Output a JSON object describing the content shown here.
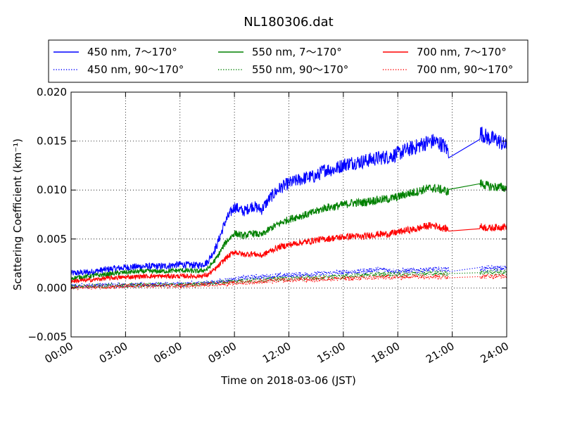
{
  "chart_data": {
    "type": "line",
    "title": "NL180306.dat",
    "xlabel": "Time on 2018-03-06 (JST)",
    "ylabel": "Scattering Coefficient (km⁻¹)",
    "xlim": [
      0,
      24
    ],
    "ylim": [
      -0.005,
      0.02
    ],
    "grid": true,
    "legend_position": "top",
    "xticks": [
      0,
      3,
      6,
      9,
      12,
      15,
      18,
      21,
      24
    ],
    "xtick_labels": [
      "00:00",
      "03:00",
      "06:00",
      "09:00",
      "12:00",
      "15:00",
      "18:00",
      "21:00",
      "24:00"
    ],
    "yticks": [
      -0.005,
      0.0,
      0.005,
      0.01,
      0.015,
      0.02
    ],
    "ytick_labels": [
      "−0.005",
      "0.000",
      "0.005",
      "0.010",
      "0.015",
      "0.020"
    ],
    "gap_hours": [
      20.8,
      22.5
    ],
    "series": [
      {
        "name": "450 nm, 7～170°",
        "color": "#0000ff",
        "style": "solid",
        "x": [
          0,
          1,
          2,
          3,
          4,
          5,
          6,
          7,
          7.5,
          8,
          8.5,
          9,
          9.5,
          10,
          10.5,
          11,
          11.5,
          12,
          12.5,
          13,
          13.5,
          14,
          14.5,
          15,
          15.5,
          16,
          16.5,
          17,
          17.5,
          18,
          18.5,
          19,
          19.5,
          20,
          20.5,
          20.8,
          22.5,
          23,
          23.5,
          24
        ],
        "y": [
          0.0015,
          0.0016,
          0.0019,
          0.0021,
          0.0022,
          0.0022,
          0.0024,
          0.0023,
          0.0026,
          0.0042,
          0.0068,
          0.0083,
          0.0078,
          0.0084,
          0.008,
          0.0093,
          0.0102,
          0.0107,
          0.011,
          0.0113,
          0.0114,
          0.0121,
          0.0121,
          0.0126,
          0.0128,
          0.0129,
          0.0131,
          0.0133,
          0.0134,
          0.0137,
          0.0141,
          0.0144,
          0.0148,
          0.015,
          0.0146,
          0.0139,
          0.0159,
          0.0153,
          0.0151,
          0.0144
        ]
      },
      {
        "name": "450 nm, 90～170°",
        "color": "#0000ff",
        "style": "dotted",
        "x": [
          0,
          2,
          4,
          6,
          8,
          9,
          10,
          12,
          14,
          16,
          17,
          18,
          19,
          20,
          21,
          23,
          24
        ],
        "y": [
          0.0002,
          0.0003,
          0.0003,
          0.0004,
          0.0006,
          0.0009,
          0.0011,
          0.0013,
          0.0015,
          0.0017,
          0.0019,
          0.0017,
          0.0018,
          0.0019,
          0.0019,
          0.002,
          0.002
        ]
      },
      {
        "name": "550 nm, 7～170°",
        "color": "#008000",
        "style": "solid",
        "x": [
          0,
          1,
          2,
          3,
          4,
          5,
          6,
          7,
          7.5,
          8,
          8.5,
          9,
          9.5,
          10,
          10.5,
          11,
          11.5,
          12,
          12.5,
          13,
          13.5,
          14,
          14.5,
          15,
          15.5,
          16,
          16.5,
          17,
          17.5,
          18,
          18.5,
          19,
          19.5,
          20,
          20.5,
          20.8,
          22.5,
          23,
          23.5,
          24
        ],
        "y": [
          0.001,
          0.0012,
          0.0014,
          0.0016,
          0.0017,
          0.0017,
          0.0018,
          0.0017,
          0.0019,
          0.003,
          0.0046,
          0.0056,
          0.0053,
          0.0056,
          0.0054,
          0.0061,
          0.0066,
          0.007,
          0.0073,
          0.0075,
          0.0078,
          0.0082,
          0.0083,
          0.0085,
          0.0087,
          0.0087,
          0.0089,
          0.009,
          0.0091,
          0.0093,
          0.0096,
          0.0098,
          0.0101,
          0.0102,
          0.01,
          0.0098,
          0.0107,
          0.0104,
          0.0103,
          0.0102
        ]
      },
      {
        "name": "550 nm, 90～170°",
        "color": "#008000",
        "style": "dotted",
        "x": [
          0,
          2,
          4,
          6,
          8,
          9,
          10,
          12,
          14,
          16,
          17,
          18,
          19,
          20,
          21,
          23,
          24
        ],
        "y": [
          0.0001,
          0.0002,
          0.0003,
          0.0003,
          0.0005,
          0.0007,
          0.0008,
          0.001,
          0.0011,
          0.0013,
          0.0014,
          0.0014,
          0.0015,
          0.0015,
          0.0015,
          0.0016,
          0.0016
        ]
      },
      {
        "name": "700 nm, 7～170°",
        "color": "#ff0000",
        "style": "solid",
        "x": [
          0,
          1,
          2,
          3,
          4,
          5,
          6,
          7,
          7.5,
          8,
          8.5,
          9,
          9.5,
          10,
          10.5,
          11,
          11.5,
          12,
          12.5,
          13,
          13.5,
          14,
          14.5,
          15,
          15.5,
          16,
          16.5,
          17,
          17.5,
          18,
          18.5,
          19,
          19.5,
          20,
          20.5,
          20.8,
          22.5,
          23,
          23.5,
          24
        ],
        "y": [
          0.0007,
          0.0008,
          0.001,
          0.0011,
          0.0012,
          0.0012,
          0.0012,
          0.0012,
          0.0013,
          0.002,
          0.003,
          0.0037,
          0.0034,
          0.0035,
          0.0033,
          0.0038,
          0.0042,
          0.0044,
          0.0046,
          0.0047,
          0.0049,
          0.005,
          0.0051,
          0.0052,
          0.0053,
          0.0052,
          0.0054,
          0.0055,
          0.0055,
          0.0057,
          0.0059,
          0.006,
          0.0063,
          0.0064,
          0.0061,
          0.006,
          0.0063,
          0.0061,
          0.0062,
          0.0063
        ]
      },
      {
        "name": "700 nm, 90～170°",
        "color": "#ff0000",
        "style": "dotted",
        "x": [
          0,
          2,
          4,
          6,
          8,
          9,
          10,
          12,
          14,
          16,
          17,
          18,
          19,
          20,
          21,
          23,
          24
        ],
        "y": [
          0.0,
          0.0001,
          0.0002,
          0.0002,
          0.0004,
          0.0005,
          0.0006,
          0.0008,
          0.0009,
          0.001,
          0.0011,
          0.0011,
          0.0012,
          0.0012,
          0.0011,
          0.0012,
          0.0012
        ]
      }
    ]
  }
}
